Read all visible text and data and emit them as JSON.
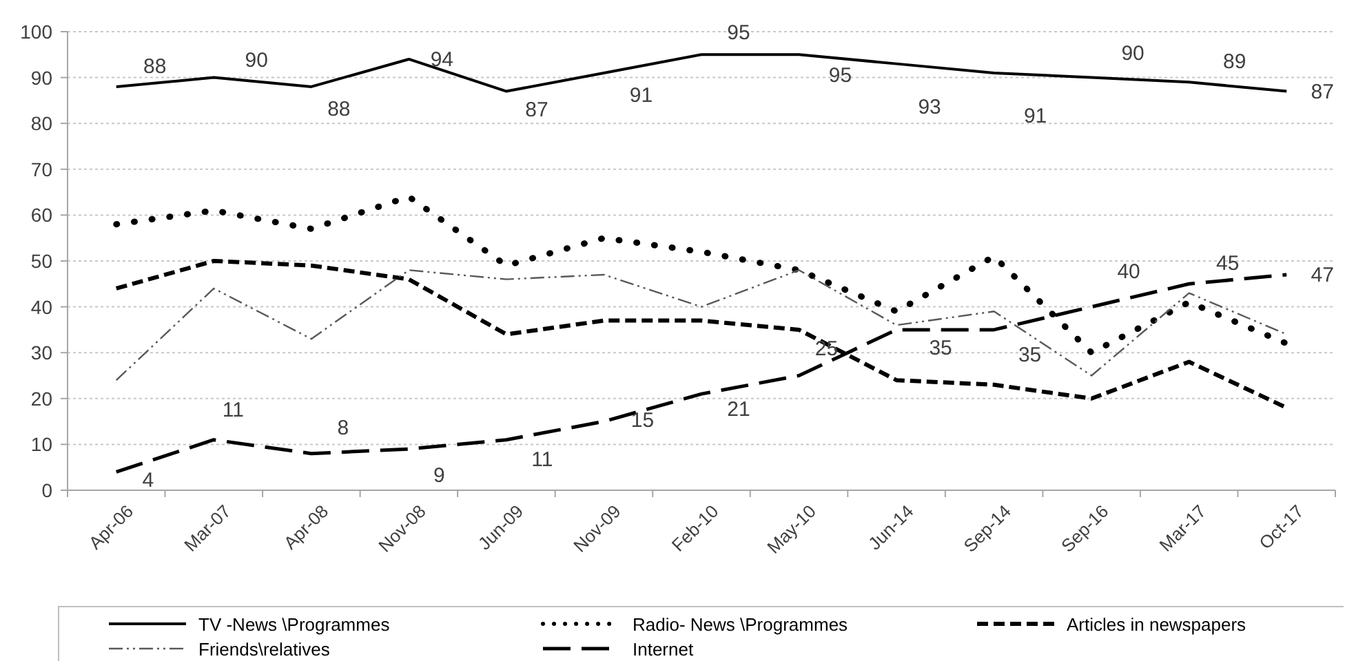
{
  "chart_data": {
    "type": "line",
    "categories": [
      "Apr-06",
      "Mar-07",
      "Apr-08",
      "Nov-08",
      "Jun-09",
      "Nov-09",
      "Feb-10",
      "May-10",
      "Jun-14",
      "Sep-14",
      "Sep-16",
      "Mar-17",
      "Oct-17"
    ],
    "ylim": [
      0,
      100
    ],
    "yticks": [
      0,
      10,
      20,
      30,
      40,
      50,
      60,
      70,
      80,
      90,
      100
    ],
    "grid": "y",
    "legend": "bottom",
    "marker": "none",
    "series": [
      {
        "name": "TV -News \\Programmes",
        "color": "#000000",
        "line_style": "solid",
        "values": [
          88,
          90,
          88,
          94,
          87,
          91,
          95,
          95,
          93,
          91,
          90,
          89,
          87
        ],
        "value_labels": [
          "88",
          "90",
          "88",
          "94",
          "87",
          "91",
          "95",
          "95",
          "93",
          "91",
          "90",
          "89",
          "87"
        ]
      },
      {
        "name": "Radio- News \\Programmes",
        "color": "#000000",
        "line_style": "dotted",
        "values": [
          58,
          61,
          57,
          64,
          49,
          55,
          52,
          48,
          39,
          51,
          30,
          41,
          32
        ]
      },
      {
        "name": "Articles in newspapers",
        "color": "#000000",
        "line_style": "dashed",
        "values": [
          44,
          50,
          49,
          46,
          34,
          37,
          37,
          35,
          24,
          23,
          20,
          28,
          18
        ]
      },
      {
        "name": "Friends\\relatives",
        "color": "#595959",
        "line_style": "dashed",
        "values": [
          24,
          44,
          33,
          48,
          46,
          47,
          40,
          48,
          36,
          39,
          25,
          43,
          34
        ]
      },
      {
        "name": "Internet",
        "color": "#000000",
        "line_style": "dashed",
        "values": [
          4,
          11,
          8,
          9,
          11,
          15,
          21,
          25,
          35,
          35,
          40,
          45,
          47
        ],
        "value_labels": [
          "4",
          "11",
          "8",
          "9",
          "11",
          "15",
          "21",
          "25",
          "35",
          "35",
          "40",
          "45",
          "47"
        ]
      }
    ]
  }
}
